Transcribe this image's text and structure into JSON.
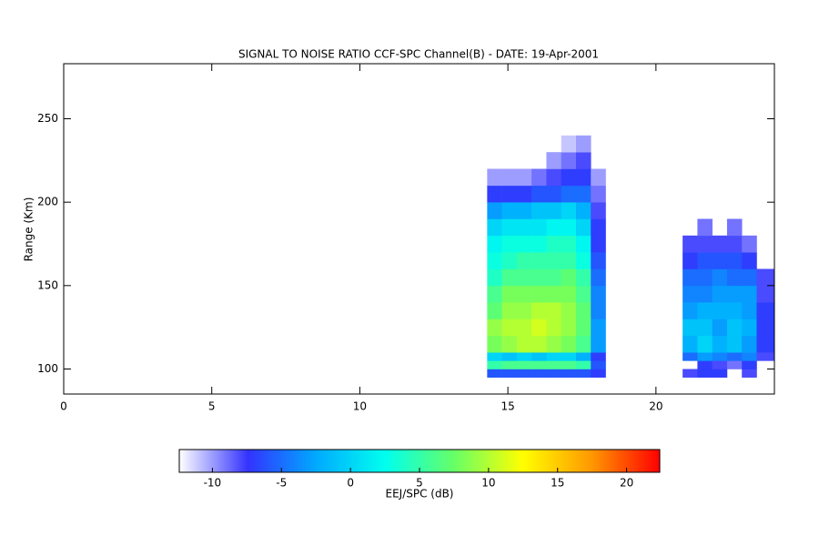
{
  "chart_data": {
    "type": "heatmap",
    "title": "SIGNAL TO NOISE RATIO CCF-SPC Channel(B) - DATE: 19-Apr-2001",
    "y_label": "Range (Km)",
    "colorbar_label": "EEJ/SPC (dB)",
    "xlim": [
      0,
      24
    ],
    "xticks": [
      0,
      5,
      10,
      15,
      20
    ],
    "ylim": [
      85,
      283
    ],
    "yticks": [
      100,
      150,
      200,
      250
    ],
    "clim": [
      -12.4,
      22.4
    ],
    "cticks": [
      -10,
      -5,
      0,
      5,
      10,
      15,
      20
    ],
    "colormap": [
      "#ffffff",
      "#3333ff",
      "#00aaff",
      "#00ffee",
      "#66ff66",
      "#ffff00",
      "#ff9900",
      "#ff0000"
    ],
    "xbins": [
      14.3,
      14.8,
      15.3,
      15.8,
      16.3,
      16.8,
      17.3,
      17.8,
      18.3,
      20.9,
      21.4,
      21.9,
      22.4,
      22.9,
      23.4,
      24
    ],
    "ybins": [
      95,
      100,
      105,
      110,
      120,
      130,
      140,
      150,
      160,
      170,
      180,
      190,
      200,
      210,
      220,
      230,
      240
    ],
    "z": [
      [
        -6,
        -6,
        -6,
        -6,
        -6,
        -6,
        -6,
        -7,
        null,
        -8,
        -7,
        -7,
        null,
        -8,
        null
      ],
      [
        5,
        6,
        6,
        6,
        6,
        6,
        5,
        -6,
        null,
        null,
        -7,
        -8,
        -9,
        -7,
        null
      ],
      [
        0,
        -1,
        0,
        -1,
        0,
        0,
        -2,
        -7,
        null,
        -5,
        -3,
        -4,
        -5,
        -4,
        -8
      ],
      [
        8,
        9,
        10,
        10,
        9,
        8,
        6,
        -3,
        null,
        -2,
        0,
        -2,
        -1,
        -3,
        -7
      ],
      [
        9,
        10,
        10,
        11,
        10,
        9,
        7,
        -3,
        null,
        -1,
        -1,
        -3,
        -1,
        -2,
        -7
      ],
      [
        7,
        9,
        9,
        10,
        10,
        9,
        7,
        -4,
        null,
        -3,
        -2,
        -2,
        -2,
        -3,
        -7
      ],
      [
        6,
        8,
        8,
        8,
        8,
        8,
        6,
        -4,
        null,
        -4,
        -4,
        -3,
        -3,
        -3,
        -8
      ],
      [
        4,
        6,
        6,
        6,
        6,
        7,
        5,
        -5,
        null,
        -5,
        -5,
        -4,
        -5,
        -5,
        -8
      ],
      [
        3,
        4,
        5,
        5,
        5,
        5,
        3,
        -6,
        null,
        -7,
        -6,
        -6,
        -6,
        -7,
        null
      ],
      [
        2,
        3,
        3,
        3,
        4,
        4,
        2,
        -7,
        null,
        -8,
        -8,
        -8,
        -8,
        -9,
        null
      ],
      [
        0,
        1,
        1,
        1,
        2,
        2,
        0,
        -7,
        null,
        null,
        -9,
        null,
        -9,
        null,
        null
      ],
      [
        -3,
        -2,
        -2,
        -1,
        -1,
        0,
        -2,
        -8,
        null,
        null,
        null,
        null,
        null,
        null,
        null
      ],
      [
        -7,
        -7,
        -7,
        -6,
        -6,
        -5,
        -5,
        -9,
        null,
        null,
        null,
        null,
        null,
        null,
        null
      ],
      [
        -10,
        -10,
        -10,
        -9,
        -8,
        -7,
        -7,
        -10,
        null,
        null,
        null,
        null,
        null,
        null,
        null
      ],
      [
        null,
        null,
        null,
        null,
        -10,
        -9,
        -8,
        null,
        null,
        null,
        null,
        null,
        null,
        null,
        null
      ],
      [
        null,
        null,
        null,
        null,
        null,
        -11,
        -10,
        null,
        null,
        null,
        null,
        null,
        null,
        null,
        null
      ]
    ]
  }
}
